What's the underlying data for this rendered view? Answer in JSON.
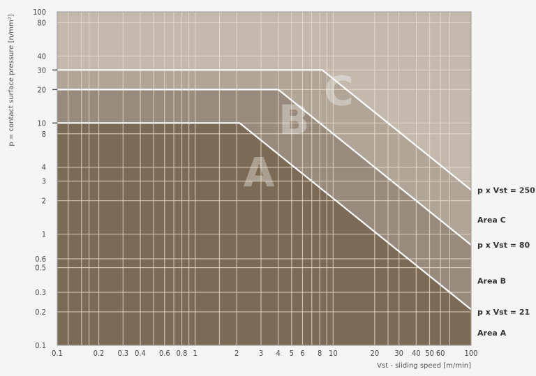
{
  "chart_data": {
    "type": "area",
    "title": "",
    "xlabel": "Vst - sliding speed [m/min]",
    "ylabel": "p = contact surface pressure [n/mm²]",
    "xscale": "log",
    "yscale": "log",
    "xlim": [
      0.1,
      100
    ],
    "ylim": [
      0.1,
      100
    ],
    "grid": true,
    "x_ticks": [
      "0.1",
      "0.2",
      "0.3",
      "0.4",
      "0.6",
      "0.8",
      "1",
      "2",
      "3",
      "4",
      "5",
      "6",
      "8",
      "10",
      "20",
      "30",
      "40",
      "50",
      "60",
      "100"
    ],
    "y_ticks": [
      "0.1",
      "0.2",
      "0.3",
      "0.5",
      "0.6",
      "1",
      "2",
      "3",
      "4",
      "8",
      "10",
      "20",
      "30",
      "40",
      "80",
      "100"
    ],
    "x_grid": [
      0.1,
      0.12,
      0.15,
      0.17,
      0.2,
      0.3,
      0.4,
      0.5,
      0.6,
      0.7,
      0.8,
      0.9,
      1,
      1.5,
      2,
      3,
      4,
      5,
      6,
      7,
      8,
      9,
      10,
      20,
      25,
      30,
      40,
      50,
      60,
      70,
      100
    ],
    "series": [
      {
        "name": "p x Vst = 21",
        "area": "A",
        "points": [
          [
            0.1,
            10
          ],
          [
            2.1,
            10
          ],
          [
            100,
            0.21
          ]
        ]
      },
      {
        "name": "p x Vst = 80",
        "area": "B",
        "points": [
          [
            0.1,
            20
          ],
          [
            4,
            20
          ],
          [
            100,
            0.8
          ]
        ]
      },
      {
        "name": "p x Vst = 250",
        "area": "C",
        "points": [
          [
            0.1,
            30
          ],
          [
            8.33,
            30
          ],
          [
            100,
            2.5
          ]
        ]
      }
    ],
    "region_letters": [
      "A",
      "B",
      "C"
    ],
    "right_labels": [
      {
        "text": "p x Vst = 250",
        "y": 2.5
      },
      {
        "text": "Area C",
        "y": 1.35
      },
      {
        "text": "p x Vst = 80",
        "y": 0.8
      },
      {
        "text": "Area B",
        "y": 0.38
      },
      {
        "text": "p x Vst = 21",
        "y": 0.2
      },
      {
        "text": "Area A",
        "y": 0.13
      }
    ],
    "colors": {
      "area_a": "#7b6a55",
      "area_b": "#988a7c",
      "area_c": "#b0a597",
      "above": "#c3b9ad",
      "lines": "#ffffff",
      "grid": "#e8dccb"
    }
  }
}
